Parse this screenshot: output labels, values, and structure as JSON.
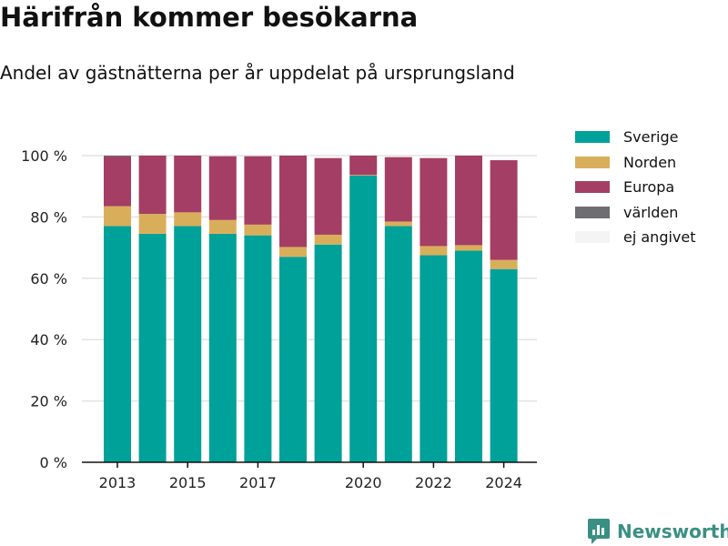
{
  "title": "Härifrån kommer besökarna",
  "subtitle": "Andel av gästnätterna per år uppdelat på ursprungsland",
  "brand": {
    "name": "Newsworthy",
    "logo_icon": "chart-speech-bubble-icon",
    "color": "#3a8f83"
  },
  "legend": [
    {
      "label": "Sverige",
      "color": "#00a198"
    },
    {
      "label": "Norden",
      "color": "#d9ae5b"
    },
    {
      "label": "Europa",
      "color": "#a43e64"
    },
    {
      "label": "världen",
      "color": "#6d6d72"
    },
    {
      "label": "ej angivet",
      "color": "#f4f4f4"
    }
  ],
  "chart_data": {
    "type": "bar",
    "stacked": true,
    "categories": [
      "2013",
      "2014",
      "2015",
      "2016",
      "2017",
      "2018",
      "2019",
      "2020",
      "2021",
      "2022",
      "2023",
      "2024"
    ],
    "x_ticks": [
      "2013",
      "2015",
      "2017",
      "2020",
      "2022",
      "2024"
    ],
    "y_ticks": [
      "0 %",
      "20 %",
      "40 %",
      "60 %",
      "80 %",
      "100 %"
    ],
    "ylim": [
      0,
      100
    ],
    "grid": true,
    "legend_position": "right",
    "series": [
      {
        "name": "Sverige",
        "color": "#00a198",
        "values": [
          77,
          74.5,
          77,
          74.5,
          74,
          67,
          71,
          93.5,
          77,
          67.5,
          69,
          63
        ]
      },
      {
        "name": "Norden",
        "color": "#d9ae5b",
        "values": [
          6.5,
          6.5,
          4.5,
          4.5,
          3.5,
          3.2,
          3.2,
          0.2,
          1.5,
          3,
          1.8,
          3
        ]
      },
      {
        "name": "Europa",
        "color": "#a43e64",
        "values": [
          16.2,
          19,
          18.5,
          20.8,
          22.3,
          29.8,
          25,
          6.3,
          21,
          28.7,
          29.2,
          32.5
        ]
      },
      {
        "name": "världen",
        "color": "#6d6d72",
        "values": [
          0.3,
          0,
          0,
          0,
          0,
          0,
          0,
          0,
          0,
          0,
          0,
          0
        ]
      },
      {
        "name": "ej angivet",
        "color": "#f4f4f4",
        "values": [
          0,
          0,
          0,
          0,
          0,
          0,
          0,
          0,
          0,
          0,
          0,
          0
        ]
      }
    ]
  }
}
